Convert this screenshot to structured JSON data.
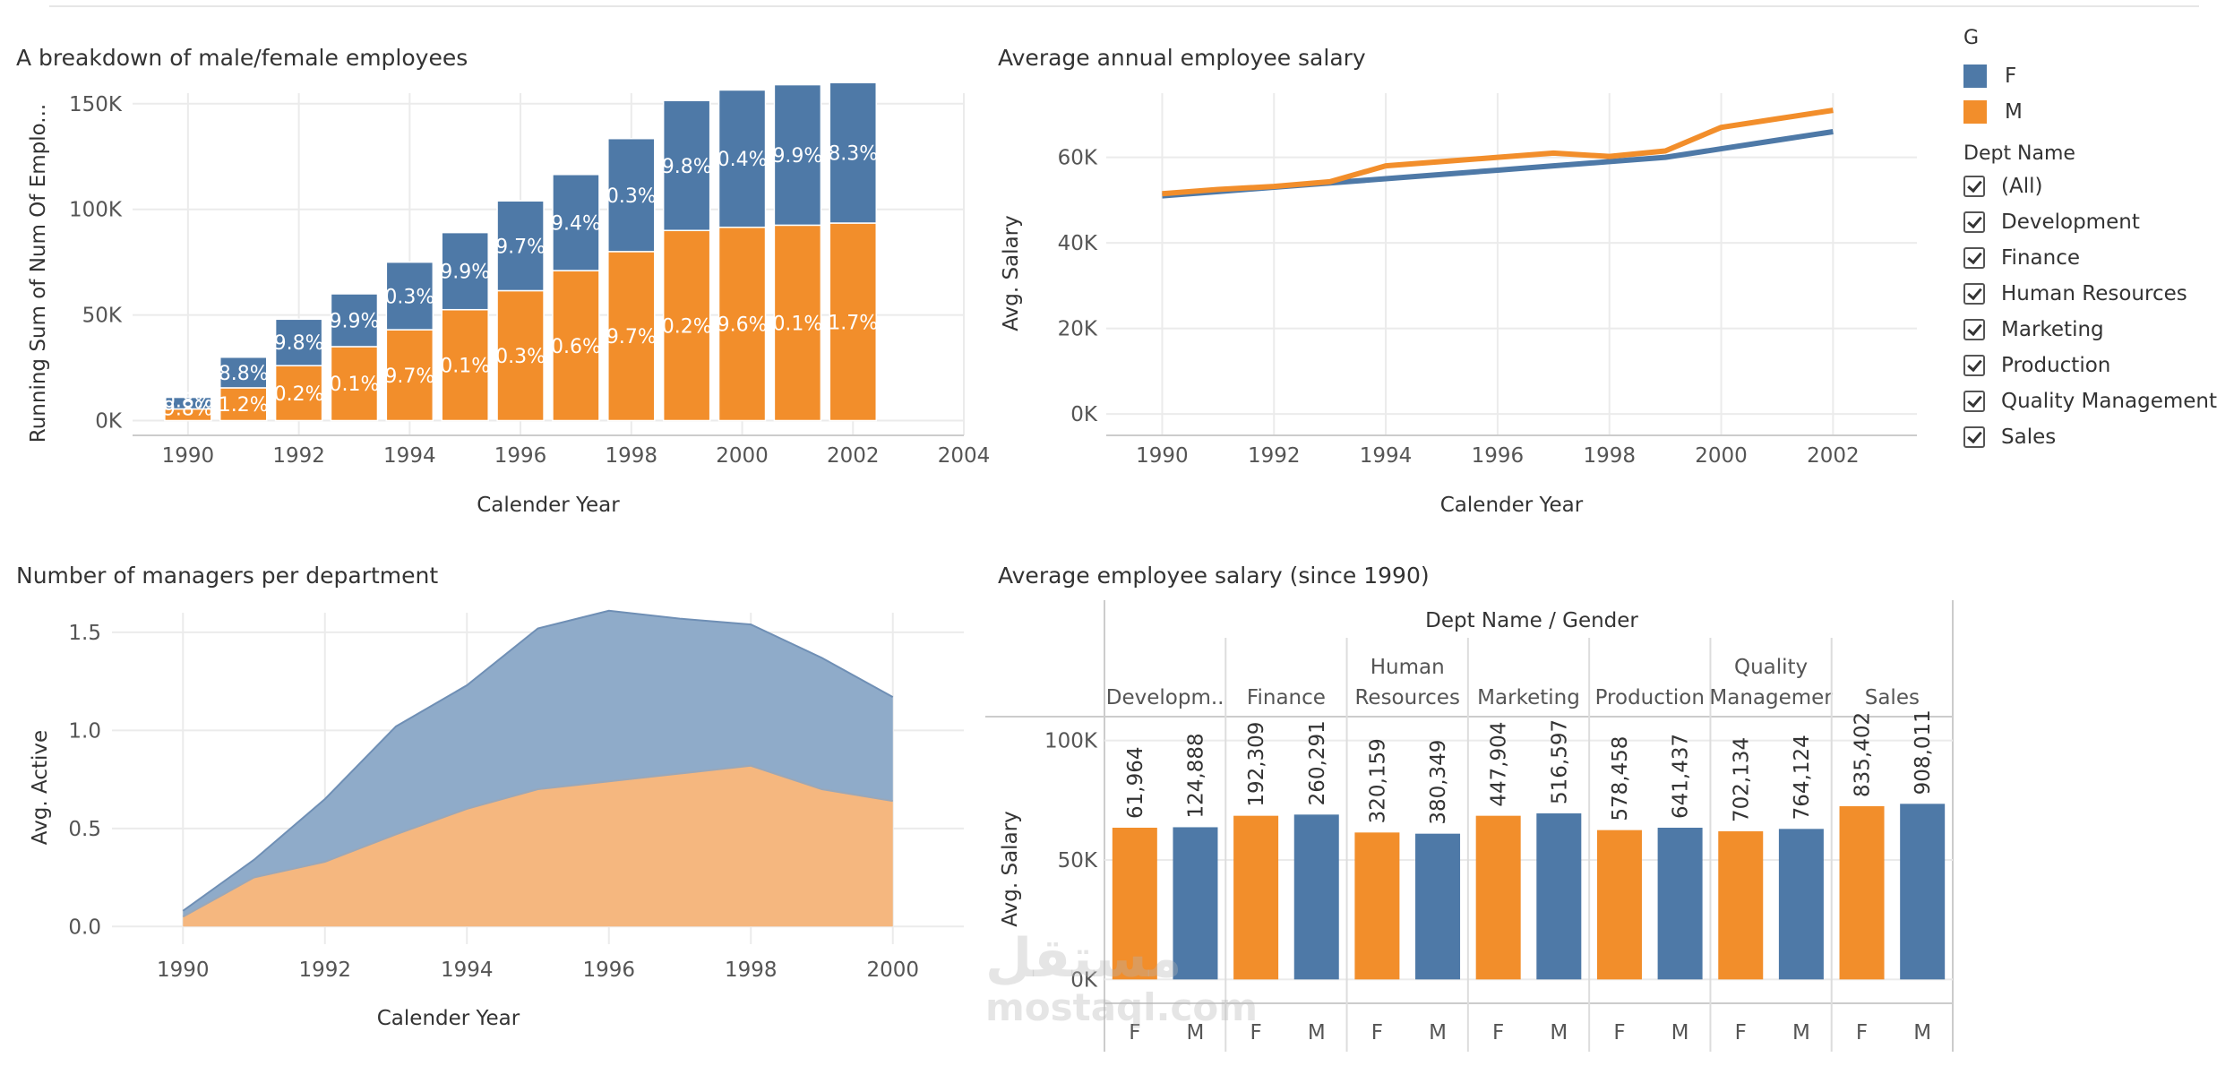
{
  "colors": {
    "female": "#4e79a7",
    "male": "#f28e2b",
    "area_female": "#8fabc9",
    "area_male": "#f5b77f"
  },
  "legend": {
    "gender_title": "G",
    "gender_items": [
      {
        "label": "F",
        "color": "#4e79a7"
      },
      {
        "label": "M",
        "color": "#f28e2b"
      }
    ],
    "dept_title": "Dept Name",
    "dept_items": [
      "(All)",
      "Development",
      "Finance",
      "Human Resources",
      "Marketing",
      "Production",
      "Quality Management",
      "Sales"
    ]
  },
  "watermark": {
    "line1": "مستقل",
    "line2": "mostaql.com"
  },
  "chart_data": [
    {
      "type": "bar",
      "title": "A breakdown of male/female employees",
      "xlabel": "Calender Year",
      "ylabel": "Running Sum of Num Of Emplo...",
      "xlim": [
        1989,
        2004
      ],
      "ylim": [
        -7000,
        155000
      ],
      "x_ticks": [
        "1990",
        "1992",
        "1994",
        "1996",
        "1998",
        "2000",
        "2002",
        "2004"
      ],
      "y_ticks": [
        "0K",
        "50K",
        "100K",
        "150K"
      ],
      "y_tick_values": [
        0,
        50000,
        100000,
        150000
      ],
      "categories": [
        1990,
        1991,
        1992,
        1993,
        1994,
        1995,
        1996,
        1997,
        1998,
        1999,
        2000,
        2001,
        2002
      ],
      "series": [
        {
          "name": "M",
          "values": [
            5500,
            15500,
            26000,
            35000,
            43000,
            52500,
            61500,
            71000,
            80000,
            90000,
            91500,
            92500,
            93500
          ],
          "labels": [
            "9.8%",
            "1.2%",
            "0.2%",
            "0.1%",
            "9.7%",
            "0.1%",
            "0.3%",
            "0.6%",
            "9.7%",
            "0.2%",
            "9.6%",
            "0.1%",
            "1.7%"
          ]
        },
        {
          "name": "F",
          "values": [
            5500,
            14500,
            22000,
            25000,
            32000,
            36500,
            42500,
            45500,
            53500,
            61500,
            65000,
            66500,
            66500
          ],
          "labels": [
            "0.8%",
            "8.8%",
            "9.8%",
            "9.9%",
            "0.3%",
            "9.9%",
            "9.7%",
            "9.4%",
            "0.3%",
            "9.8%",
            "0.4%",
            "9.9%",
            "8.3%"
          ]
        }
      ]
    },
    {
      "type": "line",
      "title": "Average annual employee salary",
      "xlabel": "Calender Year",
      "ylabel": "Avg. Salary",
      "xlim": [
        1989,
        2003.5
      ],
      "ylim": [
        -5000,
        75000
      ],
      "x_ticks": [
        "1990",
        "1992",
        "1994",
        "1996",
        "1998",
        "2000",
        "2002"
      ],
      "y_ticks": [
        "0K",
        "20K",
        "40K",
        "60K"
      ],
      "y_tick_values": [
        0,
        20000,
        40000,
        60000
      ],
      "x": [
        1990,
        1991,
        1992,
        1993,
        1994,
        1995,
        1996,
        1997,
        1998,
        1999,
        2000,
        2001,
        2002
      ],
      "series": [
        {
          "name": "F",
          "values": [
            51000,
            52000,
            53000,
            54000,
            55000,
            56000,
            57000,
            58000,
            59000,
            60000,
            62000,
            64000,
            66000
          ]
        },
        {
          "name": "M",
          "values": [
            51500,
            52500,
            53200,
            54300,
            58000,
            59000,
            60000,
            61000,
            60200,
            61500,
            67000,
            69000,
            71000
          ]
        }
      ]
    },
    {
      "type": "area",
      "title": "Number of managers per department",
      "xlabel": "Calender Year",
      "ylabel": "Avg. Active",
      "xlim": [
        1989,
        2001
      ],
      "ylim": [
        -0.09,
        1.6
      ],
      "x_ticks": [
        "1990",
        "1992",
        "1994",
        "1996",
        "1998",
        "2000"
      ],
      "y_ticks": [
        "0.0",
        "0.5",
        "1.0",
        "1.5"
      ],
      "y_tick_values": [
        0,
        0.5,
        1.0,
        1.5
      ],
      "x": [
        1990,
        1991,
        1992,
        1993,
        1994,
        1995,
        1996,
        1997,
        1998,
        1999,
        2000
      ],
      "stacked": true,
      "series": [
        {
          "name": "M",
          "values": [
            0.05,
            0.25,
            0.33,
            0.47,
            0.6,
            0.7,
            0.74,
            0.78,
            0.82,
            0.7,
            0.64
          ]
        },
        {
          "name": "F",
          "values": [
            0.03,
            0.09,
            0.32,
            0.55,
            0.63,
            0.82,
            0.87,
            0.79,
            0.72,
            0.67,
            0.53
          ]
        }
      ]
    },
    {
      "type": "bar",
      "title": "Average employee salary (since 1990)",
      "header": "Dept Name / Gender",
      "ylabel": "Avg. Salary",
      "ylim": [
        -10000,
        110000
      ],
      "y_ticks": [
        "0K",
        "50K",
        "100K"
      ],
      "y_tick_values": [
        0,
        50000,
        100000
      ],
      "departments": [
        {
          "name": "Developm..",
          "name2": ""
        },
        {
          "name": "Finance",
          "name2": ""
        },
        {
          "name": "Human",
          "name2": "Resources"
        },
        {
          "name": "Marketing",
          "name2": ""
        },
        {
          "name": "Production",
          "name2": ""
        },
        {
          "name": "Quality",
          "name2": "Managemer"
        },
        {
          "name": "Sales",
          "name2": ""
        }
      ],
      "bars": [
        {
          "gender": "F",
          "value": 63500,
          "label": "61,964"
        },
        {
          "gender": "M",
          "value": 63700,
          "label": "124,888"
        },
        {
          "gender": "F",
          "value": 68500,
          "label": "192,309"
        },
        {
          "gender": "M",
          "value": 69000,
          "label": "260,291"
        },
        {
          "gender": "F",
          "value": 61500,
          "label": "320,159"
        },
        {
          "gender": "M",
          "value": 61000,
          "label": "380,349"
        },
        {
          "gender": "F",
          "value": 68500,
          "label": "447,904"
        },
        {
          "gender": "M",
          "value": 69500,
          "label": "516,597"
        },
        {
          "gender": "F",
          "value": 62500,
          "label": "578,458"
        },
        {
          "gender": "M",
          "value": 63500,
          "label": "641,437"
        },
        {
          "gender": "F",
          "value": 62000,
          "label": "702,134"
        },
        {
          "gender": "M",
          "value": 63000,
          "label": "764,124"
        },
        {
          "gender": "F",
          "value": 72500,
          "label": "835,402"
        },
        {
          "gender": "M",
          "value": 73500,
          "label": "908,011"
        }
      ]
    }
  ]
}
